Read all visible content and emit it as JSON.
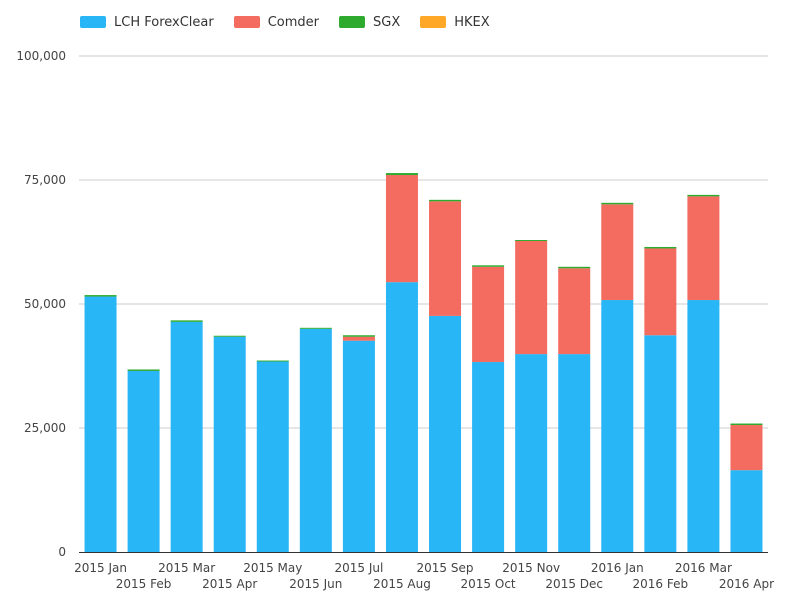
{
  "legend": [
    {
      "name": "LCH ForexClear",
      "color": "#29b6f6"
    },
    {
      "name": "Comder",
      "color": "#f36c5f"
    },
    {
      "name": "SGX",
      "color": "#2eaa2e"
    },
    {
      "name": "HKEX",
      "color": "#ffa726"
    }
  ],
  "chart_data": {
    "type": "bar",
    "stacked": true,
    "categories": [
      "2015 Jan",
      "2015 Feb",
      "2015 Mar",
      "2015 Apr",
      "2015 May",
      "2015 Jun",
      "2015 Jul",
      "2015 Aug",
      "2015 Sep",
      "2015 Oct",
      "2015 Nov",
      "2015 Dec",
      "2016 Jan",
      "2016 Feb",
      "2016 Mar",
      "2016 Apr"
    ],
    "series": [
      {
        "name": "LCH ForexClear",
        "color": "#29b6f6",
        "values": [
          51500,
          36500,
          46400,
          43400,
          38400,
          45000,
          42600,
          54400,
          47600,
          38300,
          39900,
          39900,
          50800,
          43700,
          50800,
          16500
        ]
      },
      {
        "name": "Comder",
        "color": "#f36c5f",
        "values": [
          0,
          0,
          0,
          0,
          0,
          0,
          800,
          21600,
          23100,
          19200,
          22800,
          17300,
          19300,
          17500,
          20900,
          9100
        ]
      },
      {
        "name": "SGX",
        "color": "#2eaa2e",
        "values": [
          300,
          300,
          300,
          200,
          200,
          200,
          300,
          400,
          300,
          300,
          200,
          300,
          300,
          300,
          300,
          300
        ]
      },
      {
        "name": "HKEX",
        "color": "#ffa726",
        "values": [
          0,
          0,
          0,
          0,
          0,
          0,
          0,
          0,
          0,
          0,
          0,
          0,
          0,
          0,
          0,
          0
        ]
      }
    ],
    "y_ticks": [
      "0",
      "25,000",
      "50,000",
      "75,000",
      "100,000"
    ],
    "ylim": [
      0,
      100000
    ],
    "grid": true,
    "legend_position": "top-left",
    "title": "",
    "xlabel": "",
    "ylabel": ""
  }
}
